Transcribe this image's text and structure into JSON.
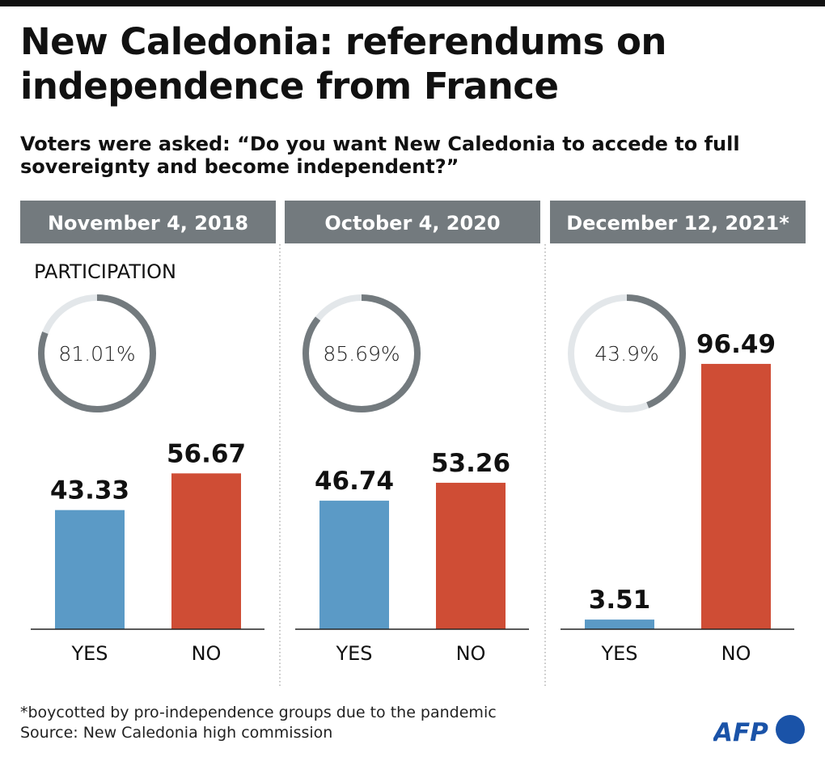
{
  "title": "New Caledonia: referendums on independence from France",
  "subtitle": "Voters were asked: “Do you want New Caledonia to accede to full sovereignty and become independent?”",
  "participation_label": "PARTICIPATION",
  "footnote": "*boycotted by pro-independence groups due to the pandemic",
  "source": "Source: New Caledonia high commission",
  "logo": "AFP",
  "colors": {
    "yes": "#5b9ac6",
    "no": "#cf4d35",
    "header": "#737a7e",
    "ring_fill": "#737a7e",
    "ring_track": "#e3e7ea",
    "logo": "#1a53a8"
  },
  "chart_data": [
    {
      "type": "bar",
      "title": "November 4, 2018",
      "categories": [
        "YES",
        "NO"
      ],
      "values": [
        43.33,
        56.67
      ],
      "value_labels": [
        "43.33",
        "56.67"
      ],
      "participation": 81.01,
      "participation_label": "81.01%",
      "ylim": [
        0,
        100
      ]
    },
    {
      "type": "bar",
      "title": "October 4, 2020",
      "categories": [
        "YES",
        "NO"
      ],
      "values": [
        46.74,
        53.26
      ],
      "value_labels": [
        "46.74",
        "53.26"
      ],
      "participation": 85.69,
      "participation_label": "85.69%",
      "ylim": [
        0,
        100
      ]
    },
    {
      "type": "bar",
      "title": "December 12, 2021*",
      "categories": [
        "YES",
        "NO"
      ],
      "values": [
        3.51,
        96.49
      ],
      "value_labels": [
        "3.51",
        "96.49"
      ],
      "participation": 43.9,
      "participation_label": "43.9%",
      "ylim": [
        0,
        100
      ]
    }
  ]
}
